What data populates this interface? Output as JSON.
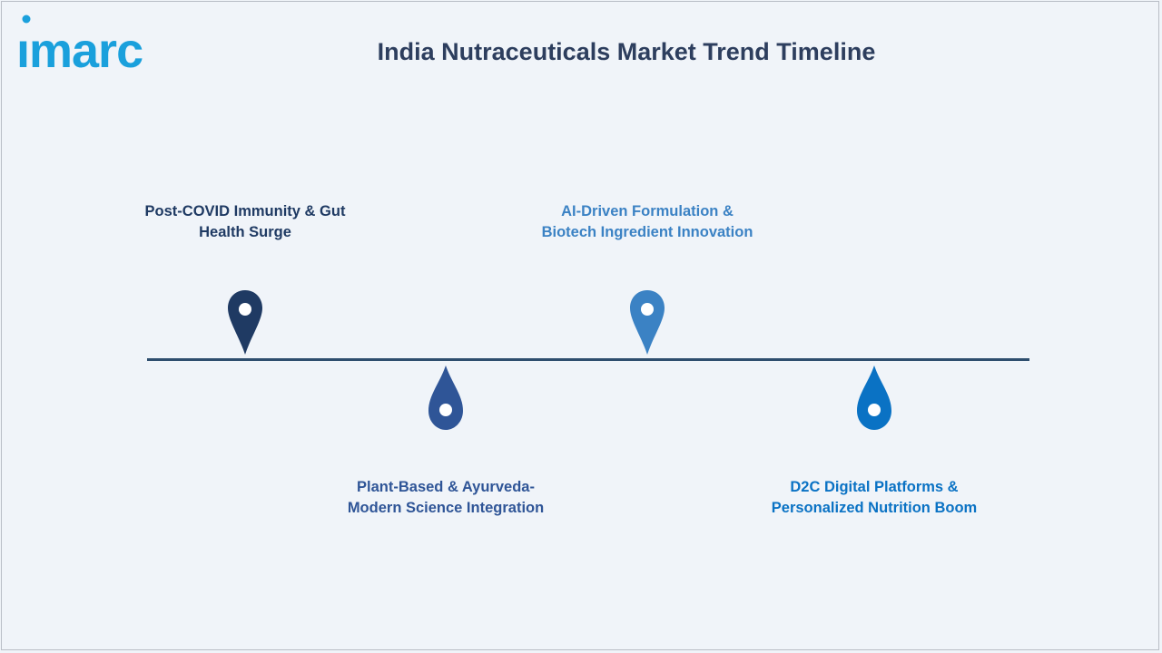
{
  "header": {
    "logo_text": "imarc",
    "title": "India Nutraceuticals Market Trend Timeline"
  },
  "timeline": {
    "events": [
      {
        "label_line1": "Post-COVID Immunity & Gut",
        "label_line2": "Health Surge",
        "color": "#1f3a63"
      },
      {
        "label_line1": "Plant-Based & Ayurveda-",
        "label_line2": "Modern Science Integration",
        "color": "#2f5597"
      },
      {
        "label_line1": "AI-Driven Formulation &",
        "label_line2": "Biotech Ingredient Innovation",
        "color": "#3b82c4"
      },
      {
        "label_line1": "D2C Digital Platforms &",
        "label_line2": "Personalized Nutrition Boom",
        "color": "#0a72c4"
      }
    ]
  }
}
